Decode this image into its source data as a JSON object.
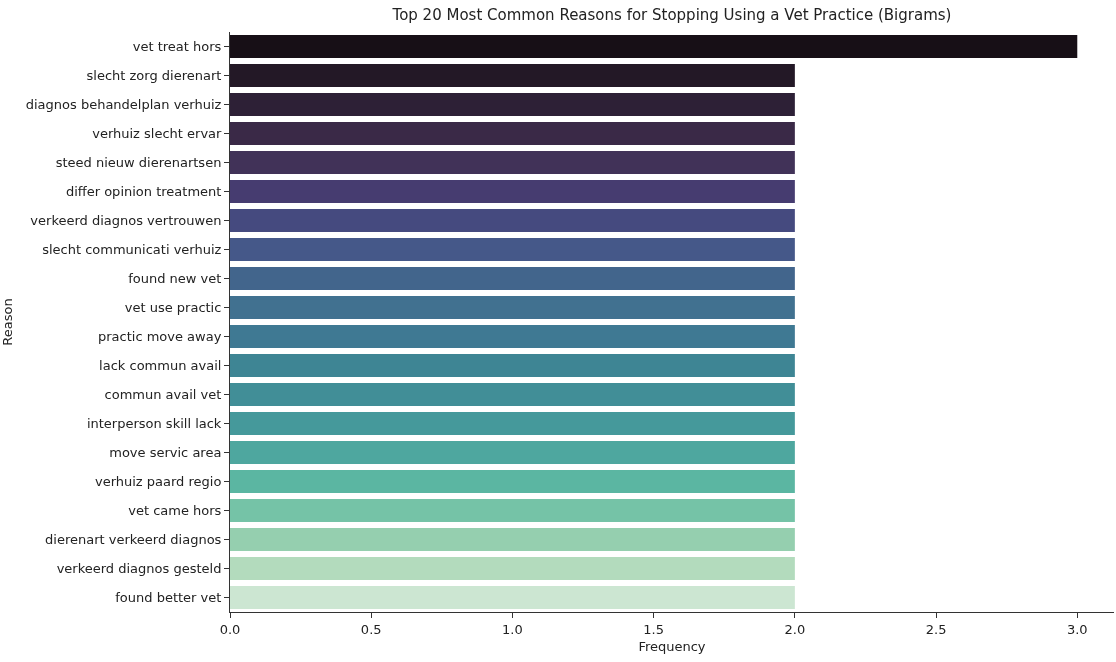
{
  "chart_data": {
    "type": "bar",
    "orientation": "horizontal",
    "title": "Top 20 Most Common Reasons for Stopping Using a Vet Practice (Bigrams)",
    "xlabel": "Frequency",
    "ylabel": "Reason",
    "categories": [
      "vet treat hors",
      "slecht zorg dierenart",
      "diagnos behandelplan verhuiz",
      "verhuiz slecht ervar",
      "steed nieuw dierenartsen",
      "differ opinion treatment",
      "verkeerd diagnos vertrouwen",
      "slecht communicati verhuiz",
      "found new vet",
      "vet use practic",
      "practic move away",
      "lack commun avail",
      "commun avail vet",
      "interperson skill lack",
      "move servic area",
      "verhuiz paard regio",
      "vet came hors",
      "dierenart verkeerd diagnos",
      "verkeerd diagnos gesteld",
      "found better vet"
    ],
    "values": [
      3,
      2,
      2,
      2,
      2,
      2,
      2,
      2,
      2,
      2,
      2,
      2,
      2,
      2,
      2,
      2,
      2,
      2,
      2,
      2
    ],
    "colors": [
      "#170f16",
      "#231826",
      "#2d2036",
      "#3a2947",
      "#413258",
      "#463c70",
      "#454a7f",
      "#455889",
      "#42658c",
      "#417190",
      "#3f7993",
      "#3e8594",
      "#418e97",
      "#45999b",
      "#4ea79f",
      "#5bb6a2",
      "#75c3a7",
      "#95cfaf",
      "#b3dbbd",
      "#cce6d2"
    ],
    "xlim": [
      0,
      3.13
    ],
    "xticks": [
      {
        "value": 0,
        "label": "0.0"
      },
      {
        "value": 0.5,
        "label": "0.5"
      },
      {
        "value": 1,
        "label": "1.0"
      },
      {
        "value": 1.5,
        "label": "1.5"
      },
      {
        "value": 2,
        "label": "2.0"
      },
      {
        "value": 2.5,
        "label": "2.5"
      },
      {
        "value": 3,
        "label": "3.0"
      }
    ]
  }
}
